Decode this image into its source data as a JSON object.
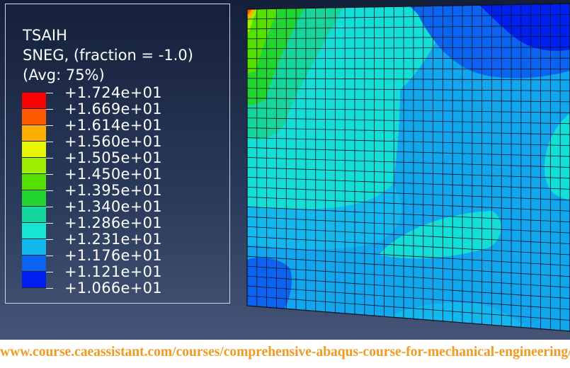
{
  "legend": {
    "variable": "TSAIH",
    "component": "SNEG, (fraction = -1.0)",
    "averaging": "(Avg: 75%)",
    "values": [
      "+1.724e+01",
      "+1.669e+01",
      "+1.614e+01",
      "+1.560e+01",
      "+1.505e+01",
      "+1.450e+01",
      "+1.395e+01",
      "+1.340e+01",
      "+1.286e+01",
      "+1.231e+01",
      "+1.176e+01",
      "+1.121e+01",
      "+1.066e+01"
    ],
    "colors": [
      "#ff0000",
      "#ff5a00",
      "#ffad00",
      "#e8f500",
      "#9ef000",
      "#55e000",
      "#22d632",
      "#16d69b",
      "#14e6d2",
      "#12b8ee",
      "#0a64f0",
      "#0020f0"
    ]
  },
  "footer": {
    "url": "www.course.caeassistant.com/courses/comprehensive-abaqus-course-for-mechanical-engineering/"
  }
}
